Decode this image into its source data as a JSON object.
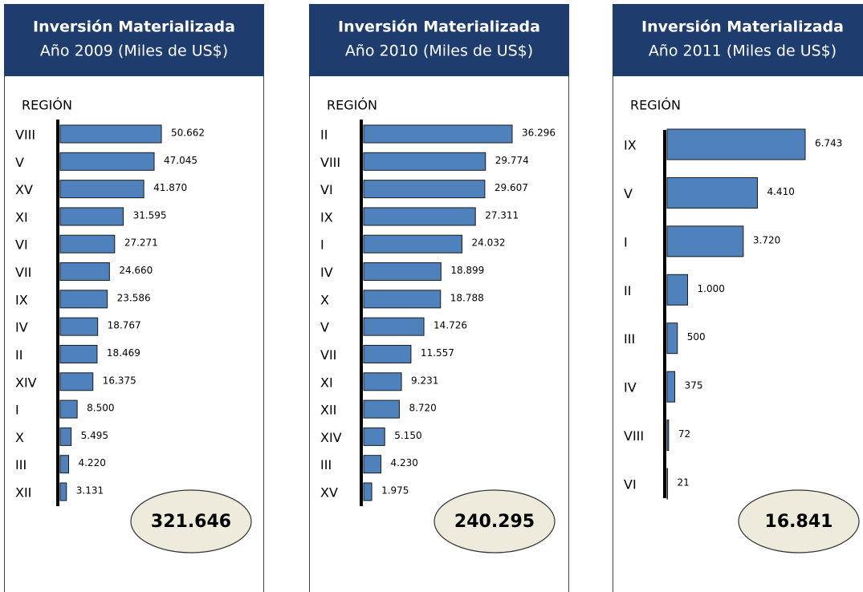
{
  "chart_data": [
    {
      "type": "bar",
      "title": "Inversión Materializada",
      "subtitle": "Año 2009 (Miles de US$)",
      "y_label": "REGIÓN",
      "color": "#4f81bd",
      "categories": [
        "VIII",
        "V",
        "XV",
        "XI",
        "VI",
        "VII",
        "IX",
        "IV",
        "II",
        "XIV",
        "I",
        "X",
        "III",
        "XII"
      ],
      "values": [
        50662,
        47045,
        41870,
        31595,
        27271,
        24660,
        23586,
        18767,
        18469,
        16375,
        8500,
        5495,
        4220,
        3131
      ],
      "value_labels": [
        "50.662",
        "47.045",
        "41.870",
        "31.595",
        "27.271",
        "24.660",
        "23.586",
        "18.767",
        "18.469",
        "16.375",
        "8.500",
        "5.495",
        "4.220",
        "3.131"
      ],
      "annotation": "321.646"
    },
    {
      "type": "bar",
      "title": "Inversión Materializada",
      "subtitle": "Año 2010 (Miles de US$)",
      "y_label": "REGIÓN",
      "color": "#4f81bd",
      "categories": [
        "II",
        "VIII",
        "VI",
        "IX",
        "I",
        "IV",
        "X",
        "V",
        "VII",
        "XI",
        "XII",
        "XIV",
        "III",
        "XV"
      ],
      "values": [
        36296,
        29774,
        29607,
        27311,
        24032,
        18899,
        18788,
        14726,
        11557,
        9231,
        8720,
        5150,
        4230,
        1975
      ],
      "value_labels": [
        "36.296",
        "29.774",
        "29.607",
        "27.311",
        "24.032",
        "18.899",
        "18.788",
        "14.726",
        "11.557",
        "9.231",
        "8.720",
        "5.150",
        "4.230",
        "1.975"
      ],
      "annotation": "240.295"
    },
    {
      "type": "bar",
      "title": "Inversión Materializada",
      "subtitle": "Año 2011 (Miles de US$)",
      "y_label": "REGIÓN",
      "color": "#4f81bd",
      "categories": [
        "IX",
        "V",
        "I",
        "II",
        "III",
        "IV",
        "VIII",
        "VI"
      ],
      "values": [
        6743,
        4410,
        3720,
        1000,
        500,
        375,
        72,
        21
      ],
      "value_labels": [
        "6.743",
        "4.410",
        "3.720",
        "1.000",
        "500",
        "375",
        "72",
        "21"
      ],
      "annotation": "16.841"
    }
  ]
}
